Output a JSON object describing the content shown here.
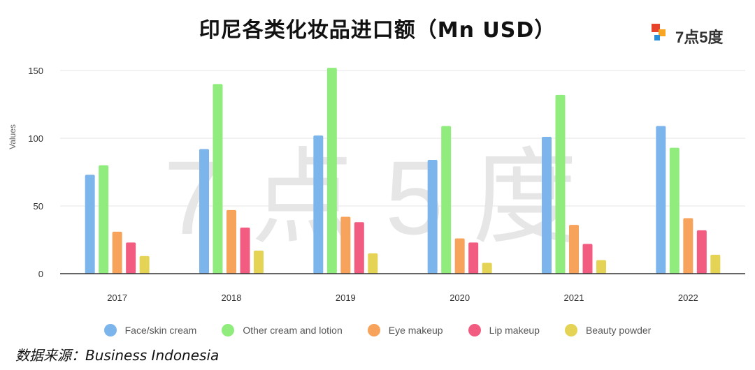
{
  "page": {
    "title": "印尼各类化妆品进口额（Mn USD）",
    "source": "数据来源：Business Indonesia"
  },
  "logo": {
    "text": "7点5度"
  },
  "watermark": {
    "text": "7 点 5 度"
  },
  "colors": {
    "face": "#7cb5ec",
    "other": "#90ed7d",
    "eye": "#f7a35c",
    "lip": "#f15c80",
    "powder": "#e4d354",
    "grid": "#e6e6e6",
    "axis": "#333333",
    "text": "#333333"
  },
  "chart_data": {
    "type": "bar",
    "title": "印尼各类化妆品进口额（Mn USD）",
    "xlabel": "",
    "ylabel": "Values",
    "ylim": [
      0,
      150
    ],
    "yticks": [
      0,
      50,
      100,
      150
    ],
    "grid": true,
    "legend_position": "bottom",
    "categories": [
      "2017",
      "2018",
      "2019",
      "2020",
      "2021",
      "2022"
    ],
    "series": [
      {
        "name": "Face/skin cream",
        "color_key": "face",
        "values": [
          73,
          92,
          102,
          84,
          101,
          109
        ]
      },
      {
        "name": "Other cream and lotion",
        "color_key": "other",
        "values": [
          80,
          140,
          152,
          109,
          132,
          93
        ]
      },
      {
        "name": "Eye makeup",
        "color_key": "eye",
        "values": [
          31,
          47,
          42,
          26,
          36,
          41
        ]
      },
      {
        "name": "Lip makeup",
        "color_key": "lip",
        "values": [
          23,
          34,
          38,
          23,
          22,
          32
        ]
      },
      {
        "name": "Beauty powder",
        "color_key": "powder",
        "values": [
          13,
          17,
          15,
          8,
          10,
          14
        ]
      }
    ]
  }
}
